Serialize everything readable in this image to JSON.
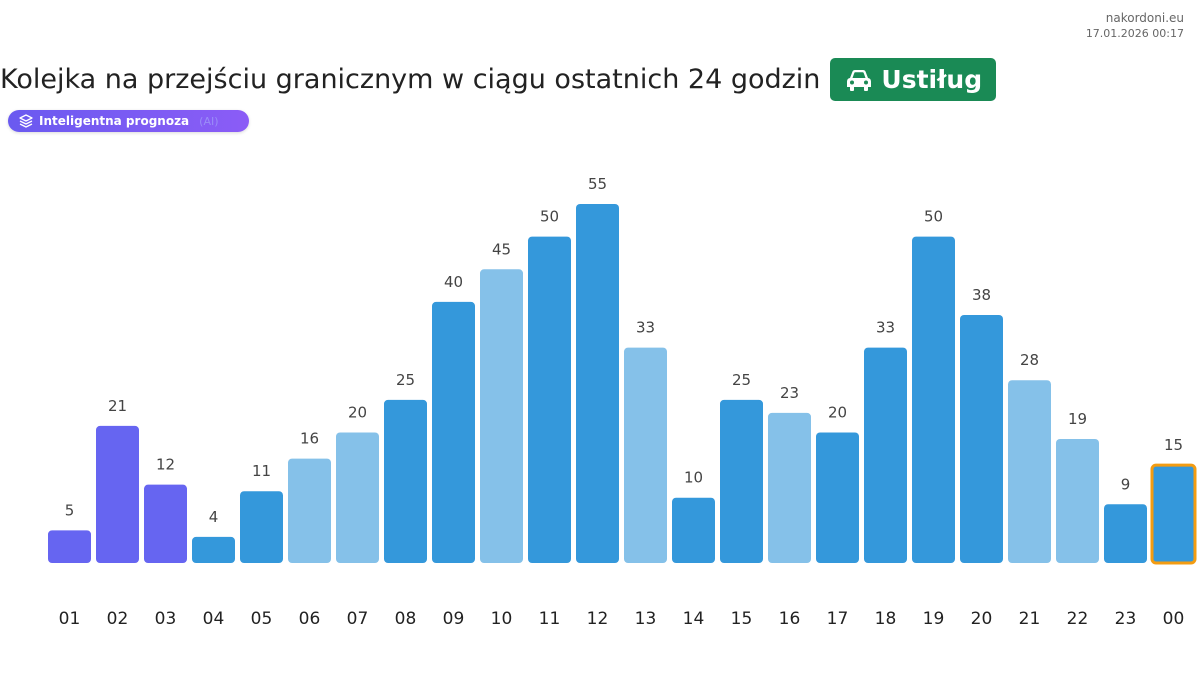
{
  "meta": {
    "site": "nakordoni.eu",
    "timestamp": "17.01.2026 00:17"
  },
  "header": {
    "title": "Kolejka na przejściu granicznym w ciągu ostatnich 24 godzin",
    "crossing": "Ustiług",
    "crossing_icon": "car-icon"
  },
  "badge": {
    "label": "Inteligentna prognoza",
    "extra": "(AI)",
    "icon": "layers-icon"
  },
  "colors": {
    "forecast": "#6665f1",
    "dark": "#3498db",
    "light": "#85c1e9",
    "highlight_border": "#f39c12",
    "crossing_bg": "#1a8a55"
  },
  "chart_data": {
    "type": "bar",
    "categories": [
      "01",
      "02",
      "03",
      "04",
      "05",
      "06",
      "07",
      "08",
      "09",
      "10",
      "11",
      "12",
      "13",
      "14",
      "15",
      "16",
      "17",
      "18",
      "19",
      "20",
      "21",
      "22",
      "23",
      "00"
    ],
    "values": [
      5,
      21,
      12,
      4,
      11,
      16,
      20,
      25,
      40,
      45,
      50,
      55,
      33,
      10,
      25,
      23,
      20,
      33,
      50,
      38,
      28,
      19,
      9,
      15
    ],
    "bar_style": [
      "forecast",
      "forecast",
      "forecast",
      "dark",
      "dark",
      "light",
      "light",
      "dark",
      "dark",
      "light",
      "dark",
      "dark",
      "light",
      "dark",
      "dark",
      "light",
      "dark",
      "dark",
      "dark",
      "dark",
      "light",
      "light",
      "dark",
      "dark"
    ],
    "highlighted_category": "00",
    "title": "",
    "xlabel": "",
    "ylabel": "",
    "ylim": [
      0,
      55
    ],
    "grid": false
  }
}
